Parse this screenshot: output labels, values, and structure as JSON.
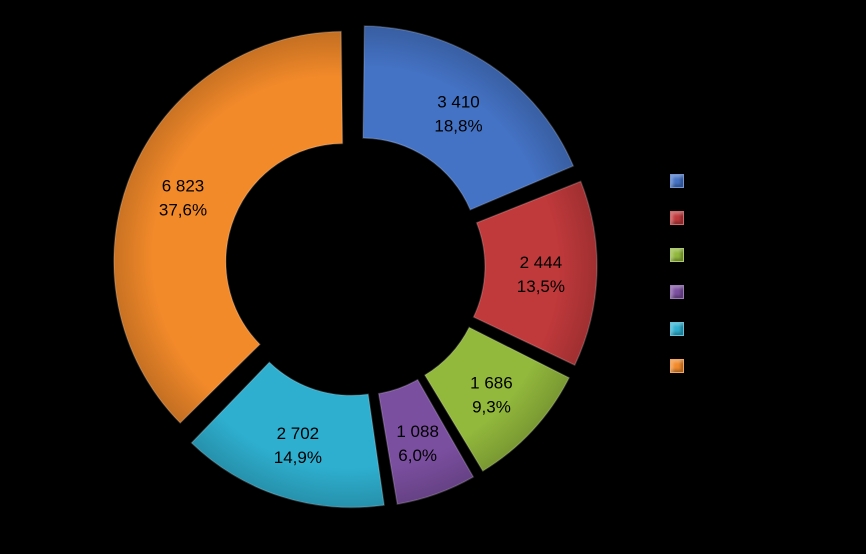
{
  "chart_data": {
    "type": "pie",
    "variant": "donut",
    "legend_position": "right",
    "slices": [
      {
        "value": 3410,
        "value_label": "3 410",
        "percent_label": "18,8%",
        "color": "#4472C4"
      },
      {
        "value": 2444,
        "value_label": "2 444",
        "percent_label": "13,5%",
        "color": "#C0393B"
      },
      {
        "value": 1686,
        "value_label": "1 686",
        "percent_label": "9,3%",
        "color": "#92B83C"
      },
      {
        "value": 1088,
        "value_label": "1 088",
        "percent_label": "6,0%",
        "color": "#7B4FA0"
      },
      {
        "value": 2702,
        "value_label": "2 702",
        "percent_label": "14,9%",
        "color": "#2EAFCF"
      },
      {
        "value": 6823,
        "value_label": "6 823",
        "percent_label": "37,6%",
        "color": "#F38A2A"
      }
    ]
  }
}
